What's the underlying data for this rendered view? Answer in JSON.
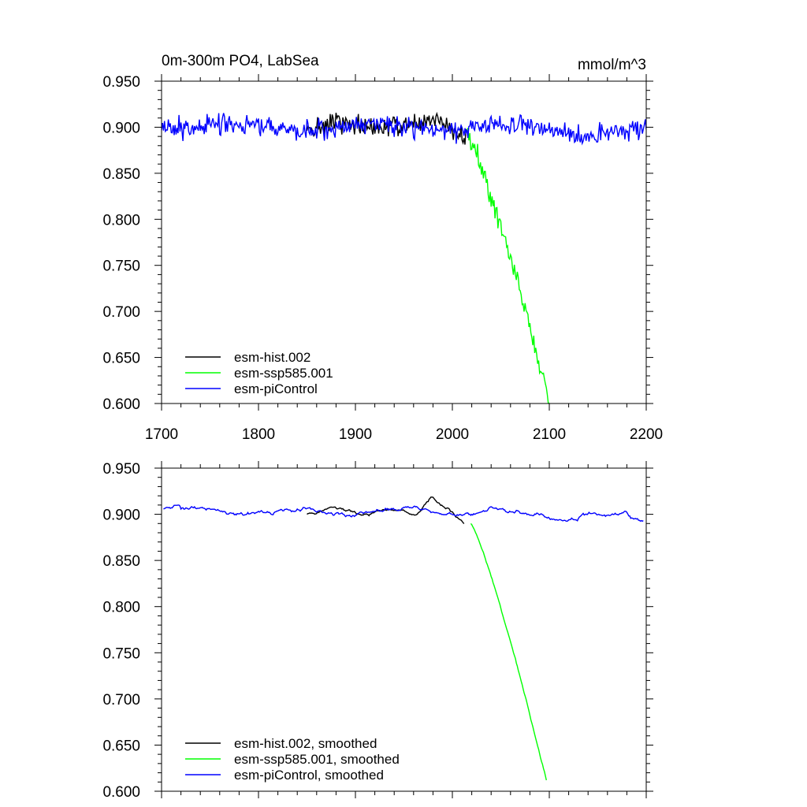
{
  "chart_data": [
    {
      "type": "line",
      "title": "0m-300m PO4, LabSea",
      "units": "mmol/m^3",
      "xlim": [
        1700,
        2200
      ],
      "ylim": [
        0.6,
        0.95
      ],
      "xticks": [
        1700,
        1800,
        1900,
        2000,
        2100,
        2200
      ],
      "xtick_labels": [
        "1700",
        "1800",
        "1900",
        "2000",
        "2100",
        "2200"
      ],
      "yticks": [
        0.6,
        0.65,
        0.7,
        0.75,
        0.8,
        0.85,
        0.9,
        0.95
      ],
      "ytick_labels": [
        "0.600",
        "0.650",
        "0.700",
        "0.750",
        "0.800",
        "0.850",
        "0.900",
        "0.950"
      ],
      "legend_position": "bottom-left",
      "series": [
        {
          "name": "esm-hist.002",
          "color": "#000000",
          "x_start": 1850,
          "x_end": 2014,
          "kind": "noisy-hist"
        },
        {
          "name": "esm-ssp585.001",
          "color": "#00ff00",
          "x_start": 2015,
          "x_end": 2100,
          "kind": "noisy-decline"
        },
        {
          "name": "esm-piControl",
          "color": "#0000ff",
          "x_start": 1700,
          "x_end": 2200,
          "kind": "noisy-control"
        }
      ]
    },
    {
      "type": "line",
      "title": "",
      "units": "",
      "xlim": [
        1700,
        2200
      ],
      "ylim": [
        0.6,
        0.95
      ],
      "yticks": [
        0.6,
        0.65,
        0.7,
        0.75,
        0.8,
        0.85,
        0.9,
        0.95
      ],
      "ytick_labels": [
        "0.600",
        "0.650",
        "0.700",
        "0.750",
        "0.800",
        "0.850",
        "0.900",
        "0.950"
      ],
      "legend_position": "bottom-left",
      "series": [
        {
          "name": "esm-hist.002, smoothed",
          "color": "#000000",
          "x_start": 1850,
          "x_end": 2012,
          "kind": "smooth-hist"
        },
        {
          "name": "esm-ssp585.001, smoothed",
          "color": "#00ff00",
          "x_start": 2019,
          "x_end": 2097,
          "kind": "smooth-decline"
        },
        {
          "name": "esm-piControl, smoothed",
          "color": "#0000ff",
          "x_start": 1702,
          "x_end": 2197,
          "kind": "smooth-control"
        }
      ]
    }
  ]
}
